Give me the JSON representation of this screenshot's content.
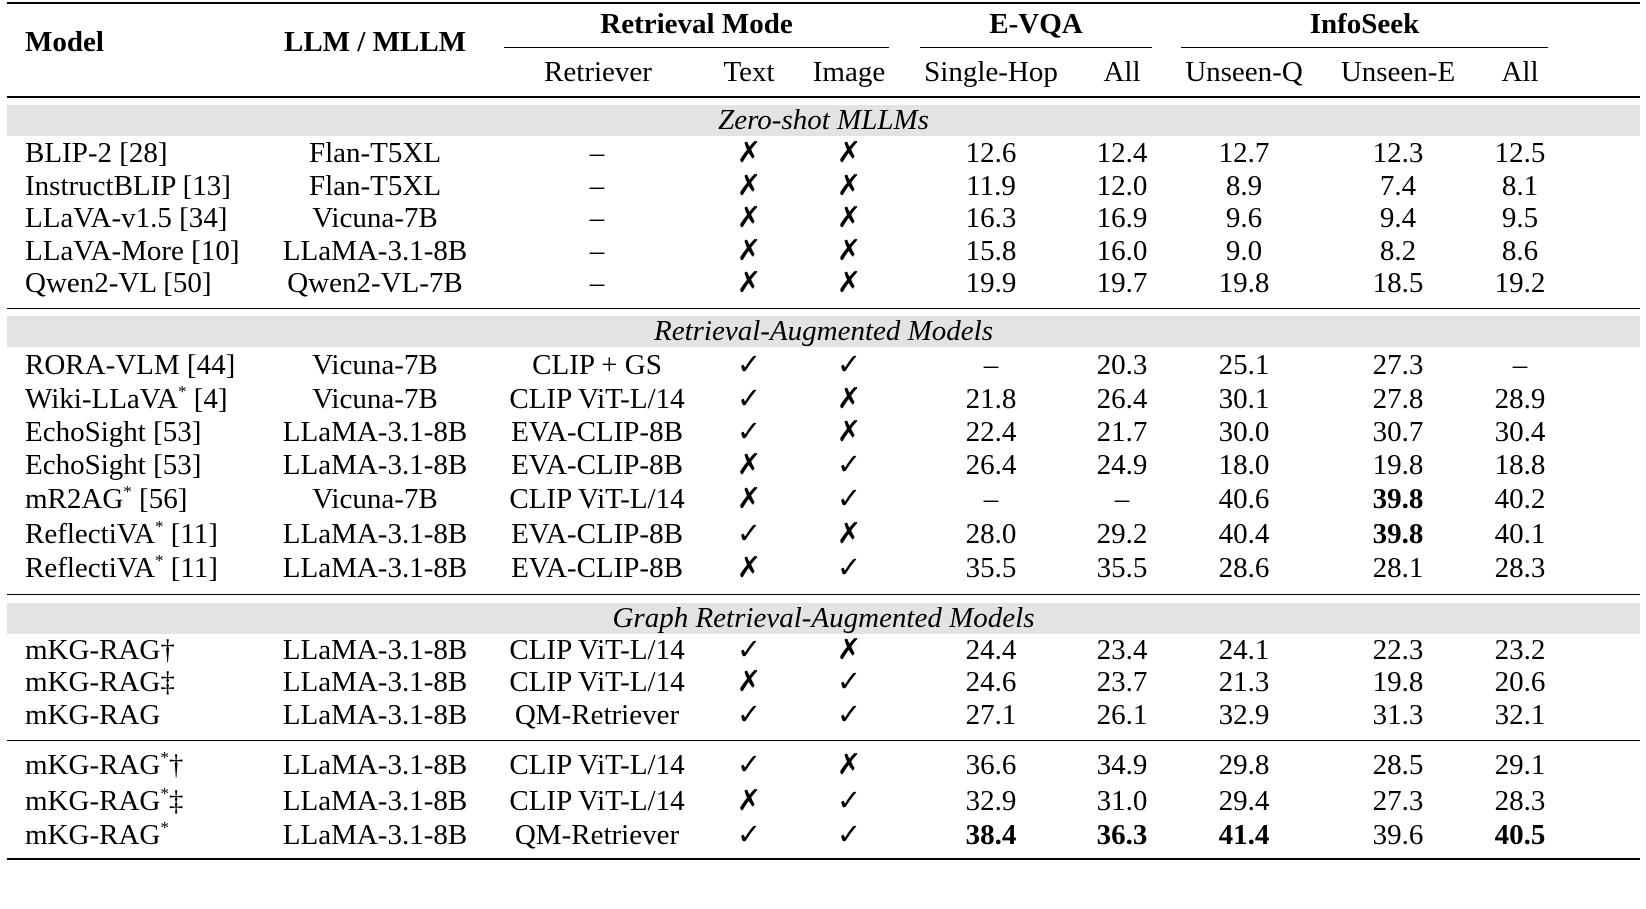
{
  "header": {
    "model": "Model",
    "llm": "LLM / MLLM",
    "retrieval_mode": "Retrieval Mode",
    "evqa": "E-VQA",
    "infoseek": "InfoSeek",
    "retriever": "Retriever",
    "text": "Text",
    "image": "Image",
    "single_hop": "Single-Hop",
    "all": "All",
    "unseen_q": "Unseen-Q",
    "unseen_e": "Unseen-E"
  },
  "sections": [
    "Zero-shot MLLMs",
    "Retrieval-Augmented Models",
    "Graph Retrieval-Augmented Models"
  ],
  "rows": [
    {
      "model": "BLIP-2 [28]",
      "llm": "Flan-T5XL",
      "retriever": "–",
      "text": "✗",
      "image": "✗",
      "evqa_single": "12.6",
      "evqa_all": "12.4",
      "unseen_q": "12.7",
      "unseen_e": "12.3",
      "is_all": "12.5"
    },
    {
      "model": "InstructBLIP [13]",
      "llm": "Flan-T5XL",
      "retriever": "–",
      "text": "✗",
      "image": "✗",
      "evqa_single": "11.9",
      "evqa_all": "12.0",
      "unseen_q": "8.9",
      "unseen_e": "7.4",
      "is_all": "8.1"
    },
    {
      "model": "LLaVA-v1.5 [34]",
      "llm": "Vicuna-7B",
      "retriever": "–",
      "text": "✗",
      "image": "✗",
      "evqa_single": "16.3",
      "evqa_all": "16.9",
      "unseen_q": "9.6",
      "unseen_e": "9.4",
      "is_all": "9.5"
    },
    {
      "model": "LLaVA-More [10]",
      "llm": "LLaMA-3.1-8B",
      "retriever": "–",
      "text": "✗",
      "image": "✗",
      "evqa_single": "15.8",
      "evqa_all": "16.0",
      "unseen_q": "9.0",
      "unseen_e": "8.2",
      "is_all": "8.6"
    },
    {
      "model": "Qwen2-VL [50]",
      "llm": "Qwen2-VL-7B",
      "retriever": "–",
      "text": "✗",
      "image": "✗",
      "evqa_single": "19.9",
      "evqa_all": "19.7",
      "unseen_q": "19.8",
      "unseen_e": "18.5",
      "is_all": "19.2"
    },
    {
      "model": "RORA-VLM [44]",
      "llm": "Vicuna-7B",
      "retriever": "CLIP + GS",
      "text": "✓",
      "image": "✓",
      "evqa_single": "–",
      "evqa_all": "20.3",
      "unseen_q": "25.1",
      "unseen_e": "27.3",
      "is_all": "–"
    },
    {
      "model": "Wiki-LLaVA",
      "star": "*",
      "ref": " [4]",
      "llm": "Vicuna-7B",
      "retriever": "CLIP ViT-L/14",
      "text": "✓",
      "image": "✗",
      "evqa_single": "21.8",
      "evqa_all": "26.4",
      "unseen_q": "30.1",
      "unseen_e": "27.8",
      "is_all": "28.9"
    },
    {
      "model": "EchoSight [53]",
      "llm": "LLaMA-3.1-8B",
      "retriever": "EVA-CLIP-8B",
      "text": "✓",
      "image": "✗",
      "evqa_single": "22.4",
      "evqa_all": "21.7",
      "unseen_q": "30.0",
      "unseen_e": "30.7",
      "is_all": "30.4"
    },
    {
      "model": "EchoSight [53]",
      "llm": "LLaMA-3.1-8B",
      "retriever": "EVA-CLIP-8B",
      "text": "✗",
      "image": "✓",
      "evqa_single": "26.4",
      "evqa_all": "24.9",
      "unseen_q": "18.0",
      "unseen_e": "19.8",
      "is_all": "18.8"
    },
    {
      "model": "mR2AG",
      "star": "*",
      "ref": " [56]",
      "llm": "Vicuna-7B",
      "retriever": "CLIP ViT-L/14",
      "text": "✗",
      "image": "✓",
      "evqa_single": "–",
      "evqa_all": "–",
      "unseen_q": "40.6",
      "unseen_e": "39.8",
      "is_all": "40.2"
    },
    {
      "model": "ReflectiVA",
      "star": "*",
      "ref": " [11]",
      "llm": "LLaMA-3.1-8B",
      "retriever": "EVA-CLIP-8B",
      "text": "✓",
      "image": "✗",
      "evqa_single": "28.0",
      "evqa_all": "29.2",
      "unseen_q": "40.4",
      "unseen_e": "39.8",
      "is_all": "40.1"
    },
    {
      "model": "ReflectiVA",
      "star": "*",
      "ref": " [11]",
      "llm": "LLaMA-3.1-8B",
      "retriever": "EVA-CLIP-8B",
      "text": "✗",
      "image": "✓",
      "evqa_single": "35.5",
      "evqa_all": "35.5",
      "unseen_q": "28.6",
      "unseen_e": "28.1",
      "is_all": "28.3"
    },
    {
      "model": "mKG-RAG†",
      "llm": "LLaMA-3.1-8B",
      "retriever": "CLIP ViT-L/14",
      "text": "✓",
      "image": "✗",
      "evqa_single": "24.4",
      "evqa_all": "23.4",
      "unseen_q": "24.1",
      "unseen_e": "22.3",
      "is_all": "23.2"
    },
    {
      "model": "mKG-RAG‡",
      "llm": "LLaMA-3.1-8B",
      "retriever": "CLIP ViT-L/14",
      "text": "✗",
      "image": "✓",
      "evqa_single": "24.6",
      "evqa_all": "23.7",
      "unseen_q": "21.3",
      "unseen_e": "19.8",
      "is_all": "20.6"
    },
    {
      "model": "mKG-RAG",
      "llm": "LLaMA-3.1-8B",
      "retriever": "QM-Retriever",
      "text": "✓",
      "image": "✓",
      "evqa_single": "27.1",
      "evqa_all": "26.1",
      "unseen_q": "32.9",
      "unseen_e": "31.3",
      "is_all": "32.1"
    },
    {
      "model": "mKG-RAG",
      "star": "*",
      "ref": "†",
      "llm": "LLaMA-3.1-8B",
      "retriever": "CLIP ViT-L/14",
      "text": "✓",
      "image": "✗",
      "evqa_single": "36.6",
      "evqa_all": "34.9",
      "unseen_q": "29.8",
      "unseen_e": "28.5",
      "is_all": "29.1"
    },
    {
      "model": "mKG-RAG",
      "star": "*",
      "ref": "‡",
      "llm": "LLaMA-3.1-8B",
      "retriever": "CLIP ViT-L/14",
      "text": "✗",
      "image": "✓",
      "evqa_single": "32.9",
      "evqa_all": "31.0",
      "unseen_q": "29.4",
      "unseen_e": "27.3",
      "is_all": "28.3"
    },
    {
      "model": "mKG-RAG",
      "star": "*",
      "ref": "",
      "llm": "LLaMA-3.1-8B",
      "retriever": "QM-Retriever",
      "text": "✓",
      "image": "✓",
      "evqa_single": "38.4",
      "evqa_all": "36.3",
      "unseen_q": "41.4",
      "unseen_e": "39.6",
      "is_all": "40.5"
    }
  ],
  "bold_cells": [
    [
      9,
      "unseen_e"
    ],
    [
      10,
      "unseen_e"
    ],
    [
      17,
      "evqa_single"
    ],
    [
      17,
      "evqa_all"
    ],
    [
      17,
      "unseen_q"
    ],
    [
      17,
      "is_all"
    ]
  ]
}
